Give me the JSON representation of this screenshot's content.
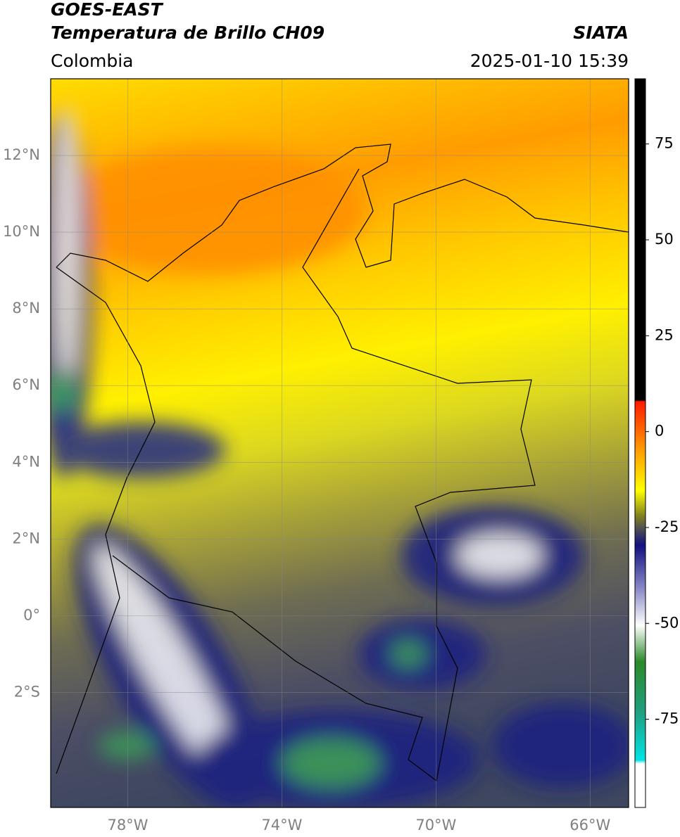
{
  "header": {
    "title": "GOES-EAST",
    "subtitle": "Temperatura de Brillo CH09",
    "source": "SIATA",
    "region": "Colombia",
    "datetime": "2025-01-10 15:39"
  },
  "map": {
    "xlim": [
      -80,
      -65
    ],
    "ylim": [
      -5,
      14
    ],
    "xticks": [
      {
        "value": -78,
        "label": "78°W"
      },
      {
        "value": -74,
        "label": "74°W"
      },
      {
        "value": -70,
        "label": "70°W"
      },
      {
        "value": -66,
        "label": "66°W"
      }
    ],
    "yticks": [
      {
        "value": 12,
        "label": "12°N"
      },
      {
        "value": 10,
        "label": "10°N"
      },
      {
        "value": 8,
        "label": "8°N"
      },
      {
        "value": 6,
        "label": "6°N"
      },
      {
        "value": 4,
        "label": "4°N"
      },
      {
        "value": 2,
        "label": "2°N"
      },
      {
        "value": 0,
        "label": "0°"
      },
      {
        "value": -2,
        "label": "2°S"
      }
    ],
    "grid": true
  },
  "colorbar": {
    "lim": [
      -98,
      92
    ],
    "ticks": [
      75,
      50,
      25,
      0,
      -25,
      -50,
      -75
    ]
  }
}
